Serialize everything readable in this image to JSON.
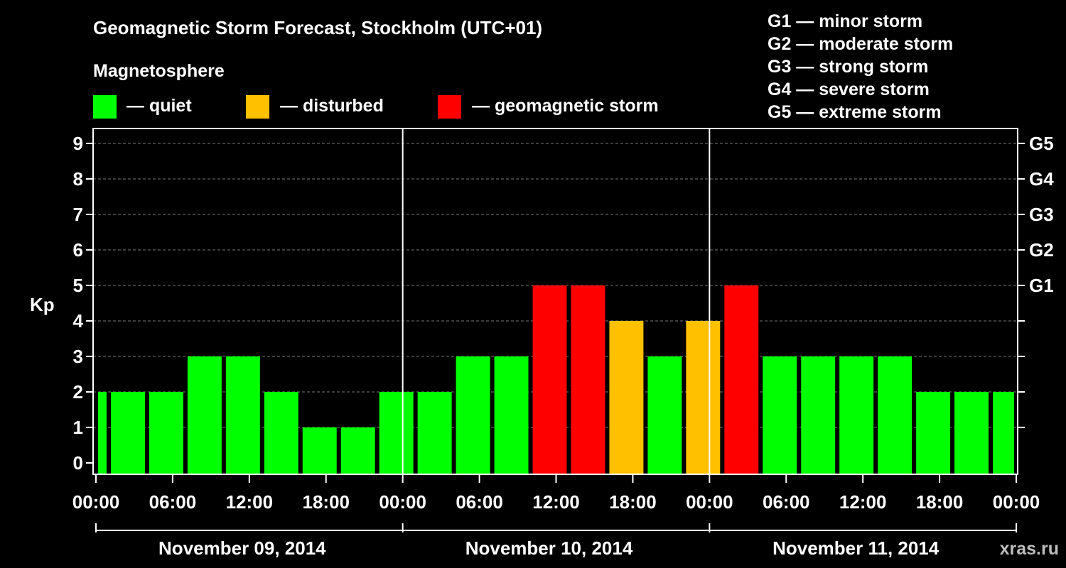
{
  "chart_data": {
    "type": "bar",
    "title": "Geomagnetic Storm Forecast, Stockholm (UTC+01)",
    "ylabel": "Kp",
    "ylim": [
      0,
      9
    ],
    "yticks": [
      "0",
      "1",
      "2",
      "3",
      "4",
      "5",
      "6",
      "7",
      "8",
      "9"
    ],
    "right_ticks": [
      {
        "value": 5,
        "label": "G1"
      },
      {
        "value": 6,
        "label": "G2"
      },
      {
        "value": 7,
        "label": "G3"
      },
      {
        "value": 8,
        "label": "G4"
      },
      {
        "value": 9,
        "label": "G5"
      }
    ],
    "xticks": [
      "00:00",
      "06:00",
      "12:00",
      "18:00",
      "00:00",
      "06:00",
      "12:00",
      "18:00",
      "00:00",
      "06:00",
      "12:00",
      "18:00",
      "00:00"
    ],
    "days": [
      "November 09, 2014",
      "November 10, 2014",
      "November 11, 2014"
    ],
    "period_hours": 3,
    "total_hours": 72,
    "bars": [
      {
        "start_hour": 0,
        "end_hour": 1,
        "value": 2,
        "level": "quiet"
      },
      {
        "start_hour": 1,
        "end_hour": 4,
        "value": 2,
        "level": "quiet"
      },
      {
        "start_hour": 4,
        "end_hour": 7,
        "value": 2,
        "level": "quiet"
      },
      {
        "start_hour": 7,
        "end_hour": 10,
        "value": 3,
        "level": "quiet"
      },
      {
        "start_hour": 10,
        "end_hour": 13,
        "value": 3,
        "level": "quiet"
      },
      {
        "start_hour": 13,
        "end_hour": 16,
        "value": 2,
        "level": "quiet"
      },
      {
        "start_hour": 16,
        "end_hour": 19,
        "value": 1,
        "level": "quiet"
      },
      {
        "start_hour": 19,
        "end_hour": 22,
        "value": 1,
        "level": "quiet"
      },
      {
        "start_hour": 22,
        "end_hour": 25,
        "value": 2,
        "level": "quiet"
      },
      {
        "start_hour": 25,
        "end_hour": 28,
        "value": 2,
        "level": "quiet"
      },
      {
        "start_hour": 28,
        "end_hour": 31,
        "value": 3,
        "level": "quiet"
      },
      {
        "start_hour": 31,
        "end_hour": 34,
        "value": 3,
        "level": "quiet"
      },
      {
        "start_hour": 34,
        "end_hour": 37,
        "value": 5,
        "level": "storm"
      },
      {
        "start_hour": 37,
        "end_hour": 40,
        "value": 5,
        "level": "storm"
      },
      {
        "start_hour": 40,
        "end_hour": 43,
        "value": 4,
        "level": "disturbed"
      },
      {
        "start_hour": 43,
        "end_hour": 46,
        "value": 3,
        "level": "quiet"
      },
      {
        "start_hour": 46,
        "end_hour": 49,
        "value": 4,
        "level": "disturbed"
      },
      {
        "start_hour": 49,
        "end_hour": 52,
        "value": 5,
        "level": "storm"
      },
      {
        "start_hour": 52,
        "end_hour": 55,
        "value": 3,
        "level": "quiet"
      },
      {
        "start_hour": 55,
        "end_hour": 58,
        "value": 3,
        "level": "quiet"
      },
      {
        "start_hour": 58,
        "end_hour": 61,
        "value": 3,
        "level": "quiet"
      },
      {
        "start_hour": 61,
        "end_hour": 64,
        "value": 3,
        "level": "quiet"
      },
      {
        "start_hour": 64,
        "end_hour": 67,
        "value": 2,
        "level": "quiet"
      },
      {
        "start_hour": 67,
        "end_hour": 70,
        "value": 2,
        "level": "quiet"
      },
      {
        "start_hour": 70,
        "end_hour": 72,
        "value": 2,
        "level": "quiet"
      }
    ],
    "colors": {
      "quiet": "#00ff00",
      "disturbed": "#ffc000",
      "storm": "#ff0000"
    }
  },
  "legend": {
    "heading": "Magnetosphere",
    "quiet": "— quiet",
    "disturbed": "— disturbed",
    "storm": "— geomagnetic storm"
  },
  "g_scale": [
    "G1 — minor storm",
    "G2 — moderate storm",
    "G3 — strong storm",
    "G4 — severe storm",
    "G5 — extreme storm"
  ],
  "watermark": "xras.ru"
}
